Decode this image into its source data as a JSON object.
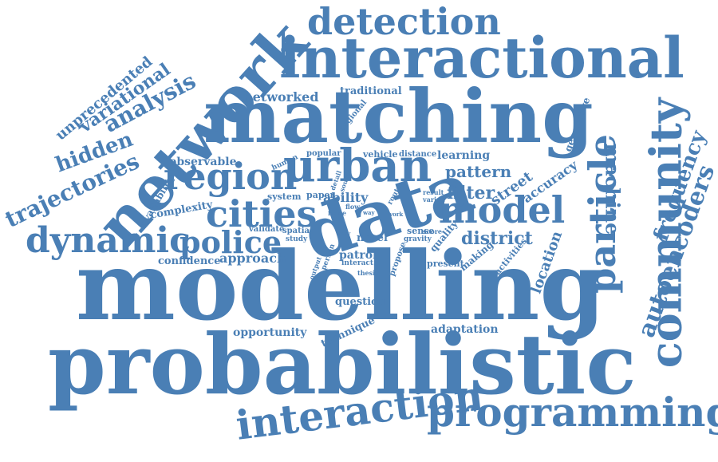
{
  "color": "#4a7fb5",
  "background": "#ffffff",
  "words": [
    "modelling",
    "probabilistic",
    "matching",
    "interactional",
    "network",
    "data",
    "urban",
    "programming",
    "interaction",
    "community",
    "particle",
    "detection",
    "cities",
    "region",
    "model",
    "dynamic",
    "police",
    "machine",
    "autoencoders",
    "frequency",
    "hidden",
    "trajectories",
    "analysis",
    "variational",
    "unprecedented",
    "district",
    "location",
    "pattern",
    "filter",
    "street",
    "accuracy",
    "networked",
    "traditional",
    "regional",
    "observable",
    "learning",
    "generative",
    "approach",
    "confidence",
    "complexity",
    "availability",
    "opportunity",
    "question",
    "technique",
    "adaptation",
    "patrol",
    "present",
    "making",
    "activities",
    "quality",
    "sense",
    "novel",
    "propose",
    "ability",
    "system",
    "paper",
    "validate",
    "spatial",
    "study",
    "person",
    "output",
    "human",
    "popular",
    "vehicle",
    "distance",
    "flow",
    "force",
    "route",
    "result",
    "varied",
    "score",
    "gravity",
    "interact",
    "thesis",
    "work",
    "way",
    "vary",
    "source",
    "detail"
  ]
}
